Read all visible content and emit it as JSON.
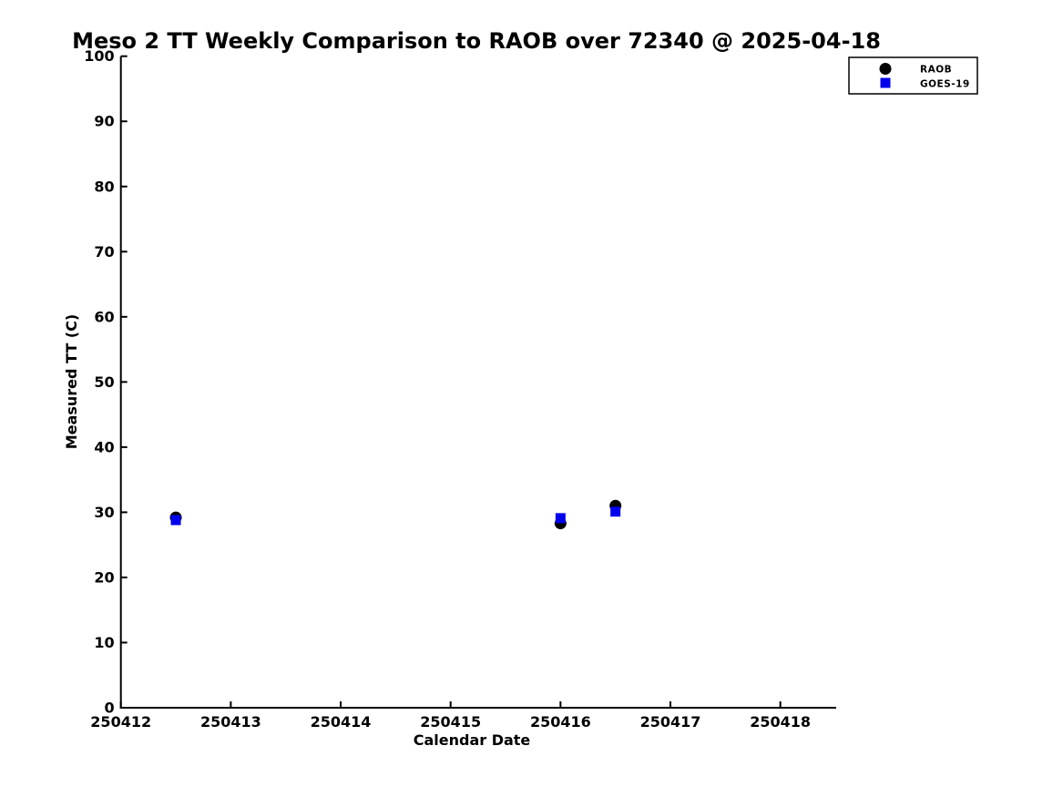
{
  "chart_data": {
    "type": "scatter",
    "title": "Meso 2 TT Weekly Comparison to RAOB over 72340 @ 2025-04-18",
    "xlabel": "Calendar Date",
    "ylabel": "Measured TT (C)",
    "xlim": [
      250412,
      250418.5
    ],
    "ylim": [
      0,
      100
    ],
    "x_ticks": [
      250412,
      250413,
      250414,
      250415,
      250416,
      250417,
      250418
    ],
    "y_ticks": [
      0,
      10,
      20,
      30,
      40,
      50,
      60,
      70,
      80,
      90,
      100
    ],
    "grid": false,
    "legend_position": "top-right",
    "series": [
      {
        "name": "RAOB",
        "marker": "circle",
        "color": "#000000",
        "points": [
          {
            "x": 250412.5,
            "y": 29.2
          },
          {
            "x": 250416.0,
            "y": 28.3
          },
          {
            "x": 250416.5,
            "y": 31.0
          }
        ]
      },
      {
        "name": "GOES-19",
        "marker": "square",
        "color": "#0000ee",
        "points": [
          {
            "x": 250412.5,
            "y": 28.8
          },
          {
            "x": 250416.0,
            "y": 29.1
          },
          {
            "x": 250416.5,
            "y": 30.1
          }
        ]
      }
    ]
  },
  "legend": {
    "items": [
      {
        "label": "RAOB",
        "marker": "circle",
        "color": "#000000"
      },
      {
        "label": "GOES-19",
        "marker": "square",
        "color": "#0000ee"
      }
    ]
  },
  "colors": {
    "background": "#ffffff",
    "axis": "#000000",
    "raob": "#000000",
    "goes19": "#0000ee"
  }
}
